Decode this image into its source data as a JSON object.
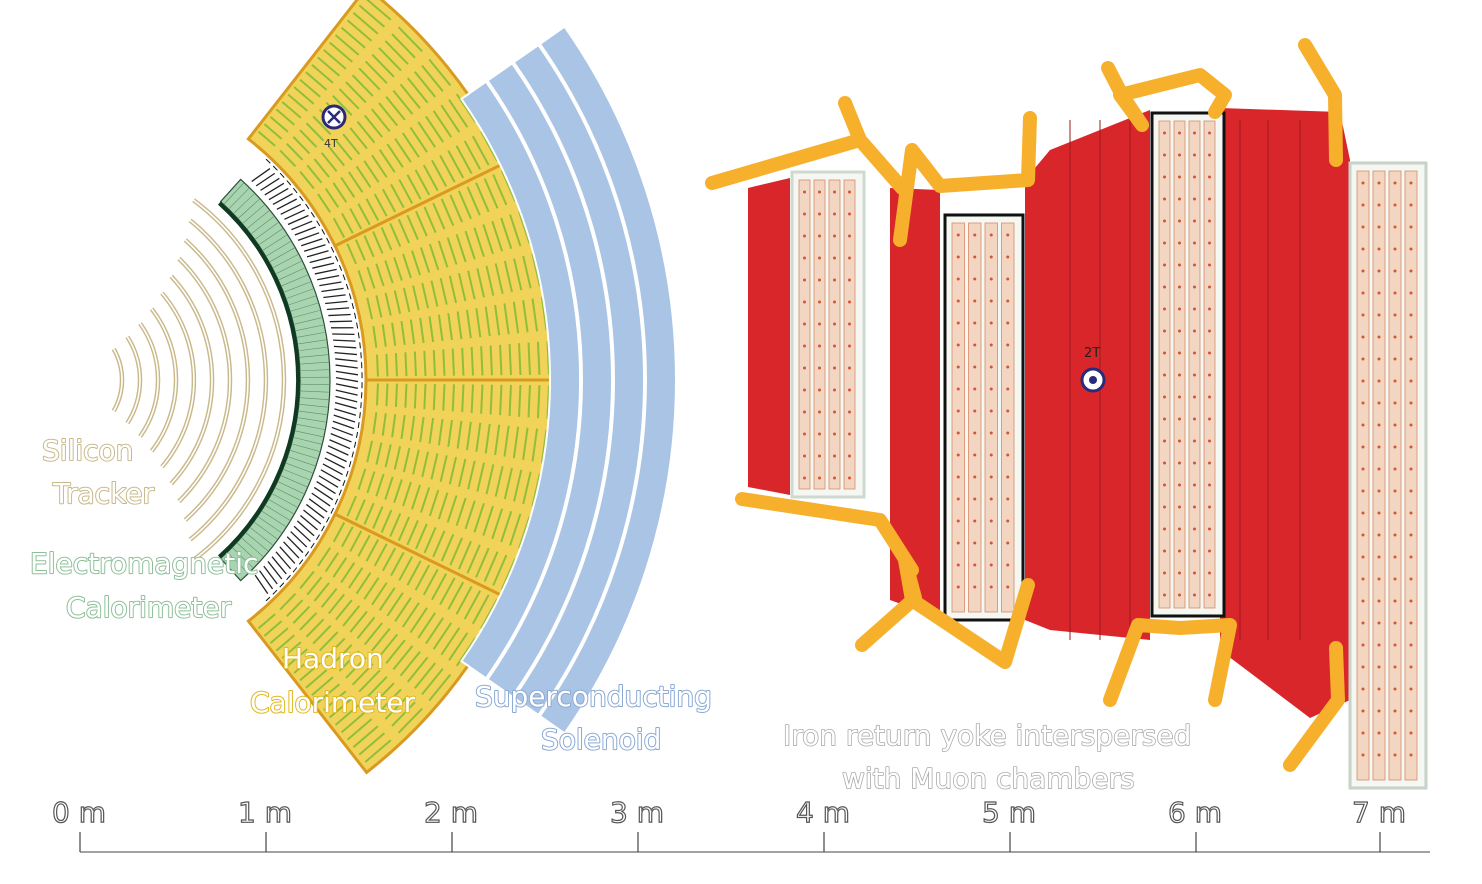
{
  "labels": {
    "tracker": [
      "Silicon",
      "Tracker"
    ],
    "ecal": [
      "Electromagnetic",
      "Calorimeter"
    ],
    "hcal": [
      "Hadron",
      "Calorimeter"
    ],
    "solenoid": [
      "Superconducting",
      "Solenoid"
    ],
    "yoke": [
      "Iron return yoke interspersed",
      "with Muon chambers"
    ]
  },
  "field": {
    "inner": "4T",
    "outer": "2T"
  },
  "scale": {
    "ticks": [
      "0 m",
      "1 m",
      "2 m",
      "3 m",
      "4 m",
      "5 m",
      "6 m",
      "7 m"
    ]
  },
  "colors": {
    "tracker": "#c9b98a",
    "ecal": "#a8d4b0",
    "hcal": "#f2d35a",
    "solenoid": "#a9c4e4",
    "yoke": "#d9262a",
    "muon": "#f6b02c",
    "chamber": "#f3d6c2",
    "field_symbol": "#2b2a7a"
  }
}
